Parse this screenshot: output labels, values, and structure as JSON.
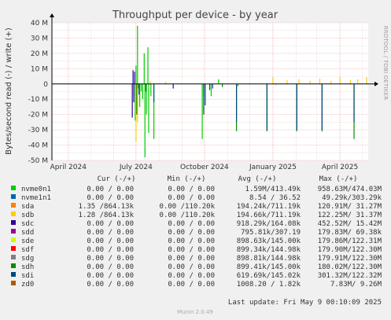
{
  "chart_data": {
    "type": "line",
    "title": "Throughput per device - by year",
    "ylabel": "Bytes/second read (-) / write (+)",
    "side_label": "RRDTOOL / TOBI OETIKER",
    "ylim": [
      -50000000,
      40000000
    ],
    "y_ticks": [
      {
        "value": 40000000,
        "label": "40 M"
      },
      {
        "value": 30000000,
        "label": "30 M"
      },
      {
        "value": 20000000,
        "label": "20 M"
      },
      {
        "value": 10000000,
        "label": "10 M"
      },
      {
        "value": 0,
        "label": "0"
      },
      {
        "value": -10000000,
        "label": "-10 M"
      },
      {
        "value": -20000000,
        "label": "-20 M"
      },
      {
        "value": -30000000,
        "label": "-30 M"
      },
      {
        "value": -40000000,
        "label": "-40 M"
      },
      {
        "value": -50000000,
        "label": "-50 M"
      }
    ],
    "xlim": [
      "2024-03-10",
      "2025-05-09"
    ],
    "x_ticks": [
      {
        "date": "2024-04-01",
        "label": "April 2024"
      },
      {
        "date": "2024-07-01",
        "label": "July 2024"
      },
      {
        "date": "2024-10-01",
        "label": "October 2024"
      },
      {
        "date": "2025-01-01",
        "label": "January 2025"
      },
      {
        "date": "2025-04-01",
        "label": "April 2025"
      }
    ],
    "grid": true,
    "series": [
      {
        "name": "nvme0n1",
        "color": "#00cc00",
        "points": [
          [
            "2024-06-28",
            -8000000
          ],
          [
            "2024-06-30",
            -24000000
          ],
          [
            "2024-07-01",
            12000000
          ],
          [
            "2024-07-03",
            38000000
          ],
          [
            "2024-07-04",
            -3000000
          ],
          [
            "2024-07-06",
            -15000000
          ],
          [
            "2024-07-08",
            -5000000
          ],
          [
            "2024-07-10",
            -10000000
          ],
          [
            "2024-07-12",
            20000000
          ],
          [
            "2024-07-13",
            -48000000
          ],
          [
            "2024-07-15",
            -20000000
          ],
          [
            "2024-07-17",
            24000000
          ],
          [
            "2024-07-18",
            -32000000
          ],
          [
            "2024-07-21",
            -8000000
          ],
          [
            "2024-07-25",
            -36000000
          ],
          [
            "2024-09-28",
            -36000000
          ],
          [
            "2024-10-10",
            -8000000
          ],
          [
            "2024-10-20",
            3000000
          ],
          [
            "2024-11-15",
            -1500000
          ]
        ]
      },
      {
        "name": "nvme1n1",
        "color": "#0066b3",
        "points": []
      },
      {
        "name": "sda",
        "color": "#ff8000",
        "points": []
      },
      {
        "name": "sdb",
        "color": "#ffcc00",
        "points": [
          [
            "2024-07-01",
            -38000000
          ],
          [
            "2024-07-03",
            -25000000
          ],
          [
            "2024-07-20",
            2000000
          ],
          [
            "2024-08-10",
            1500000
          ],
          [
            "2024-12-01",
            800000
          ],
          [
            "2025-01-01",
            4500000
          ],
          [
            "2025-01-05",
            -1000000
          ],
          [
            "2025-01-20",
            2500000
          ],
          [
            "2025-02-05",
            3000000
          ],
          [
            "2025-02-20",
            2000000
          ],
          [
            "2025-03-05",
            3500000
          ],
          [
            "2025-03-20",
            2000000
          ],
          [
            "2025-04-01",
            4500000
          ],
          [
            "2025-04-15",
            2500000
          ],
          [
            "2025-04-25",
            3000000
          ],
          [
            "2025-05-07",
            4500000
          ]
        ]
      },
      {
        "name": "sdc",
        "color": "#330099",
        "points": [
          [
            "2024-06-26",
            -22000000
          ],
          [
            "2024-06-27",
            9000000
          ],
          [
            "2024-06-28",
            -12000000
          ],
          [
            "2024-06-29",
            8000000
          ],
          [
            "2024-08-20",
            -3000000
          ]
        ]
      },
      {
        "name": "sdd",
        "color": "#990099",
        "points": []
      },
      {
        "name": "sde",
        "color": "#ccff00",
        "points": []
      },
      {
        "name": "sdf",
        "color": "#ff0000",
        "points": []
      },
      {
        "name": "sdg",
        "color": "#808080",
        "points": []
      },
      {
        "name": "sdh",
        "color": "#008f00",
        "points": [
          [
            "2024-07-02",
            -20000000
          ],
          [
            "2024-07-14",
            -5000000
          ],
          [
            "2024-09-30",
            -8000000
          ],
          [
            "2024-10-25",
            -2000000
          ],
          [
            "2024-11-13",
            -31000000
          ],
          [
            "2024-12-24",
            -31000000
          ],
          [
            "2025-02-02",
            -31000000
          ],
          [
            "2025-03-08",
            -31000000
          ],
          [
            "2025-04-20",
            -36000000
          ]
        ]
      },
      {
        "name": "sdi",
        "color": "#00487d",
        "points": [
          [
            "2024-07-05",
            -7000000
          ],
          [
            "2024-07-25",
            -12000000
          ],
          [
            "2024-09-30",
            -20000000
          ],
          [
            "2024-10-02",
            -14000000
          ],
          [
            "2024-10-08",
            -4000000
          ],
          [
            "2024-10-12",
            -3000000
          ],
          [
            "2024-11-13",
            -25000000
          ],
          [
            "2024-12-24",
            -30000000
          ],
          [
            "2025-02-02",
            -30000000
          ],
          [
            "2025-03-08",
            -30000000
          ],
          [
            "2025-04-20",
            -25000000
          ]
        ]
      },
      {
        "name": "zd0",
        "color": "#b35a00",
        "points": []
      }
    ]
  },
  "legend": {
    "headers": [
      "Cur (-/+)",
      "Min (-/+)",
      "Avg (-/+)",
      "Max (-/+)"
    ],
    "rows": [
      {
        "name": "nvme0n1",
        "color": "#00cc00",
        "cur": "0.00 /  0.00",
        "min": "0.00 /  0.00",
        "avg": "1.59M/413.49k",
        "max": "958.63M/474.03M"
      },
      {
        "name": "nvme1n1",
        "color": "#0066b3",
        "cur": "0.00 /  0.00",
        "min": "0.00 /  0.00",
        "avg": "8.54 / 36.52",
        "max": "49.29k/303.29k"
      },
      {
        "name": "sda",
        "color": "#ff8000",
        "cur": "1.35 /864.13k",
        "min": "0.00 /110.20k",
        "avg": "194.24k/711.19k",
        "max": "120.91M/ 31.27M"
      },
      {
        "name": "sdb",
        "color": "#ffcc00",
        "cur": "1.28 /864.13k",
        "min": "0.00 /110.20k",
        "avg": "194.66k/711.19k",
        "max": "122.25M/ 31.37M"
      },
      {
        "name": "sdc",
        "color": "#330099",
        "cur": "0.00 /  0.00",
        "min": "0.00 /  0.00",
        "avg": "918.29k/164.08k",
        "max": "452.52M/ 15.42M"
      },
      {
        "name": "sdd",
        "color": "#990099",
        "cur": "0.00 /  0.00",
        "min": "0.00 /  0.00",
        "avg": "795.81k/307.19",
        "max": "179.83M/ 69.38k"
      },
      {
        "name": "sde",
        "color": "#ccff00",
        "cur": "0.00 /  0.00",
        "min": "0.00 /  0.00",
        "avg": "898.63k/145.00k",
        "max": "179.86M/122.31M"
      },
      {
        "name": "sdf",
        "color": "#ff0000",
        "cur": "0.00 /  0.00",
        "min": "0.00 /  0.00",
        "avg": "899.34k/144.98k",
        "max": "179.90M/122.30M"
      },
      {
        "name": "sdg",
        "color": "#808080",
        "cur": "0.00 /  0.00",
        "min": "0.00 /  0.00",
        "avg": "898.81k/144.98k",
        "max": "179.91M/122.30M"
      },
      {
        "name": "sdh",
        "color": "#008f00",
        "cur": "0.00 /  0.00",
        "min": "0.00 /  0.00",
        "avg": "899.41k/145.00k",
        "max": "180.02M/122.30M"
      },
      {
        "name": "sdi",
        "color": "#00487d",
        "cur": "0.00 /  0.00",
        "min": "0.00 /  0.00",
        "avg": "619.69k/145.02k",
        "max": "301.32M/122.32M"
      },
      {
        "name": "zd0",
        "color": "#b35a00",
        "cur": "0.00 /  0.00",
        "min": "0.00 /  0.00",
        "avg": "1008.20 /  1.82k",
        "max": "7.83M/  9.26M"
      }
    ]
  },
  "last_update": "Last update: Fri May  9 00:10:09 2025",
  "footer": "Munin 2.0.49"
}
